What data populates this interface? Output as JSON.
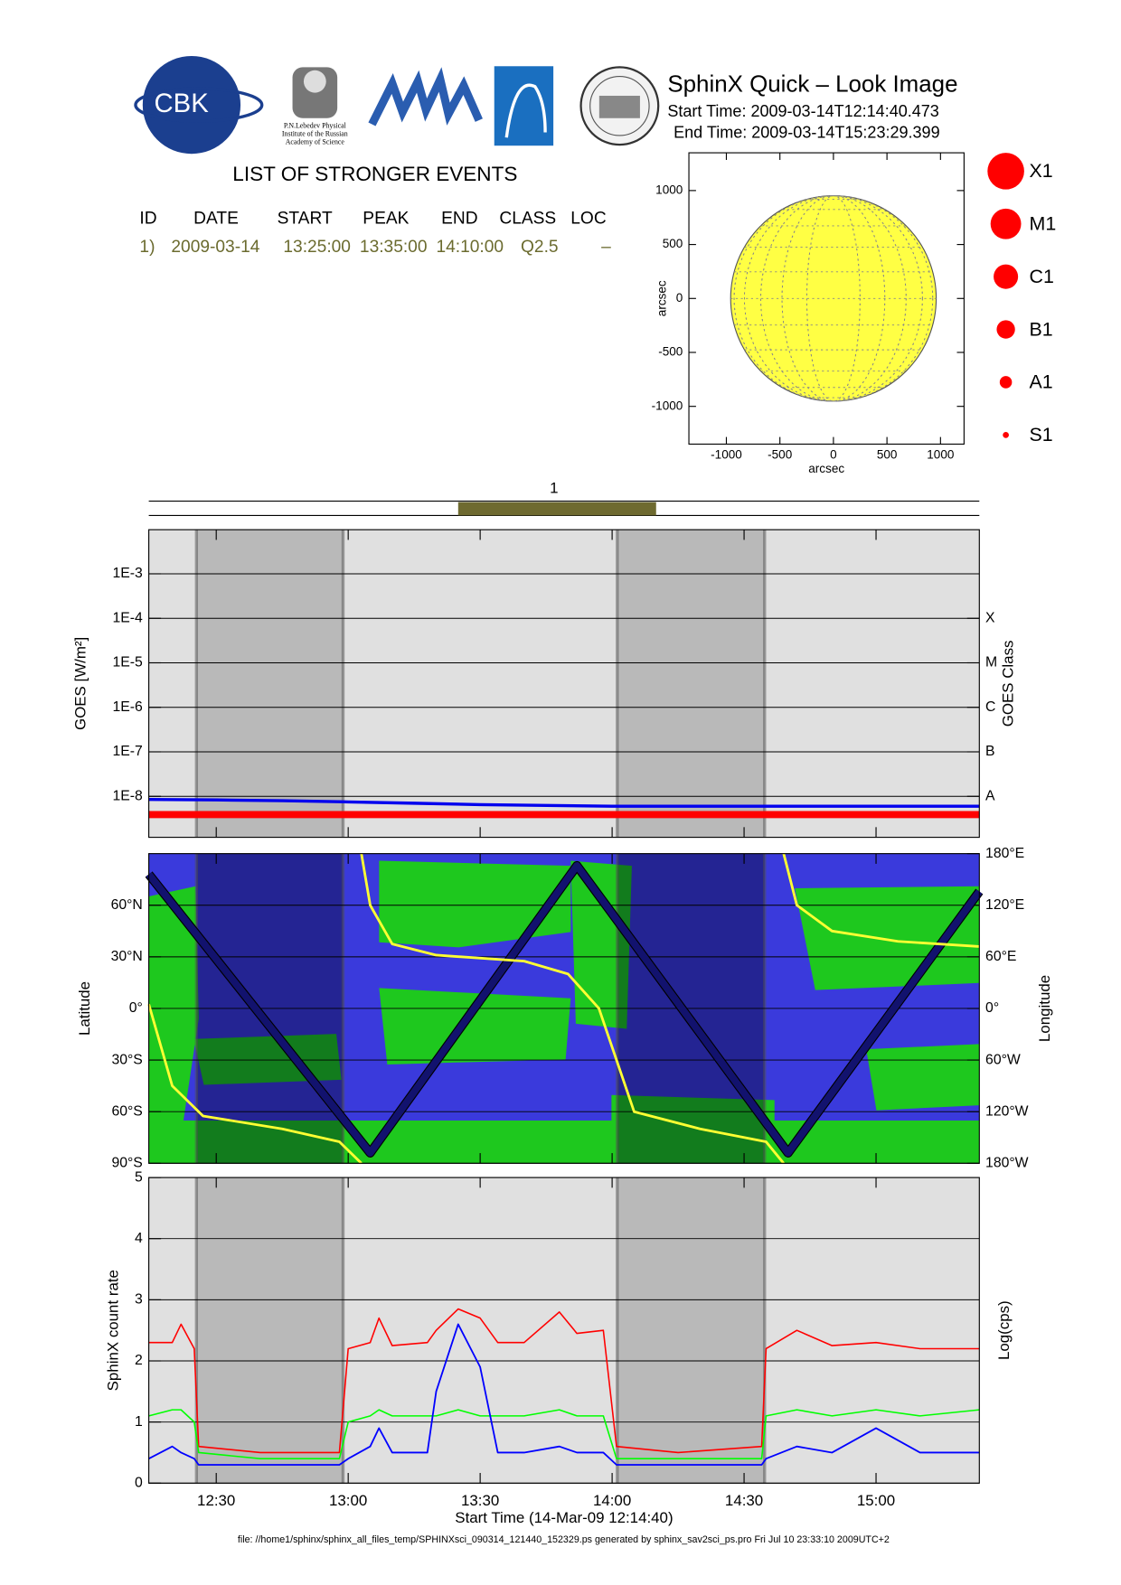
{
  "header": {
    "title": "SphinX Quick – Look Image",
    "start_time": "Start Time: 2009-03-14T12:14:40.473",
    "end_time": "End Time: 2009-03-14T15:23:29.399",
    "logo_text": "CBK",
    "institute_lines": [
      "P.N.Lebedev Physical",
      "Institute of the Russian",
      "Academy of Science"
    ]
  },
  "events": {
    "title": "LIST OF STRONGER EVENTS",
    "columns": [
      "ID",
      "DATE",
      "START",
      "PEAK",
      "END",
      "CLASS",
      "LOC"
    ],
    "rows": [
      [
        "1)",
        "2009-03-14",
        "13:25:00",
        "13:35:00",
        "14:10:00",
        "Q2.5",
        "–"
      ]
    ]
  },
  "class_legend": {
    "labels": [
      "X1",
      "M1",
      "C1",
      "B1",
      "A1",
      "S1"
    ],
    "color": "#ff0000"
  },
  "chart_data": [
    {
      "type": "disk",
      "xlabel": "arcsec",
      "ylabel": "arcsec",
      "xlim": [
        -1350,
        1220
      ],
      "ylim": [
        -1350,
        1350
      ],
      "xticks": [
        -1000,
        -500,
        0,
        500,
        1000
      ],
      "yticks": [
        -1000,
        -500,
        0,
        500,
        1000
      ],
      "radius": 960,
      "color": "#ffff44"
    },
    {
      "type": "span",
      "label": "1",
      "color": "#6e6a30",
      "xlim": [
        "12:14:40",
        "15:23:29"
      ]
    },
    {
      "type": "line",
      "ylabel": "GOES [W/m²]",
      "y2label": "GOES Class",
      "ylog": true,
      "background": "#e0e0e0",
      "shade_color": "#b9b9b9",
      "grid": true,
      "xlim": [
        "12:14:40",
        "15:23:29"
      ],
      "xticks": [
        "12:30",
        "13:00",
        "13:30",
        "14:00",
        "14:30",
        "15:00"
      ],
      "shaded": [
        [
          "12:25:30",
          "12:58:50"
        ],
        [
          "14:01:10",
          "14:34:40"
        ]
      ],
      "ylim": [
        1.2e-09,
        0.0098
      ],
      "yticks": [
        {
          "value": 1e-08,
          "label": "1E-8"
        },
        {
          "value": 1e-07,
          "label": "1E-7"
        },
        {
          "value": 1e-06,
          "label": "1E-6"
        },
        {
          "value": 1e-05,
          "label": "1E-5"
        },
        {
          "value": 0.0001,
          "label": "1E-4"
        },
        {
          "value": 0.001,
          "label": "1E-3"
        }
      ],
      "y2lim": [
        1.2e-09,
        0.0098
      ],
      "y2ticks": [
        {
          "value": 1e-08,
          "label": "A"
        },
        {
          "value": 1e-07,
          "label": "B"
        },
        {
          "value": 1e-06,
          "label": "C"
        },
        {
          "value": 1e-05,
          "label": "M"
        },
        {
          "value": 0.0001,
          "label": "X"
        }
      ],
      "x": [
        "12:14:40",
        "12:30",
        "12:45",
        "13:00",
        "13:15",
        "13:30",
        "14:00",
        "14:30",
        "15:00",
        "15:23:29"
      ],
      "series": [
        {
          "color": "#0000ee",
          "values": [
            8.5e-09,
            8.3e-09,
            8e-09,
            7.5e-09,
            7e-09,
            6.5e-09,
            6e-09,
            6e-09,
            6e-09,
            6e-09
          ]
        },
        {
          "color": "#ff0000",
          "values": [
            3.9e-09,
            3.9e-09,
            3.9e-09,
            3.9e-09,
            3.9e-09,
            3.9e-09,
            3.9e-09,
            3.9e-09,
            3.9e-09,
            3.9e-09
          ]
        }
      ]
    },
    {
      "type": "line",
      "ylabel": "Latitude",
      "y2label": "Longitude",
      "background": "#3a3adc",
      "shade_color": "rgba(0,0,30,0.38)",
      "grid": true,
      "xlim": [
        "12:14:40",
        "15:23:29"
      ],
      "xticks": [
        "12:30",
        "13:00",
        "13:30",
        "14:00",
        "14:30",
        "15:00"
      ],
      "shaded": [
        [
          "12:25:30",
          "12:58:50"
        ],
        [
          "14:01:10",
          "14:34:40"
        ]
      ],
      "ylim": [
        -90,
        90
      ],
      "yticks": [
        {
          "value": -90,
          "label": "90°S"
        },
        {
          "value": -60,
          "label": "60°S"
        },
        {
          "value": -30,
          "label": "30°S"
        },
        {
          "value": 0,
          "label": "0°"
        },
        {
          "value": 30,
          "label": "30°N"
        },
        {
          "value": 60,
          "label": "60°N"
        }
      ],
      "y2lim": [
        -180,
        180
      ],
      "y2ticks": [
        {
          "value": -180,
          "label": "180°W"
        },
        {
          "value": -120,
          "label": "120°W"
        },
        {
          "value": -60,
          "label": "60°W"
        },
        {
          "value": 0,
          "label": "0°"
        },
        {
          "value": 60,
          "label": "60°E"
        },
        {
          "value": 120,
          "label": "120°E"
        },
        {
          "value": 180,
          "label": "180°E"
        }
      ],
      "series": [
        {
          "color": "#12126e",
          "x": [
            "12:14:40",
            "13:05",
            "13:52",
            "14:40",
            "15:23:29"
          ],
          "values": [
            78,
            -84,
            83,
            -84,
            68
          ]
        },
        {
          "color": "#ffff33",
          "axis": "y2",
          "x": [
            "12:14:40",
            "12:20",
            "12:27",
            "12:45",
            "12:58",
            "13:03",
            "13:03",
            "13:03",
            "13:05",
            "13:10",
            "13:20",
            "13:40",
            "13:50",
            "13:57",
            "14:05",
            "14:20",
            "14:35",
            "14:39",
            "14:39",
            "14:39",
            "14:42",
            "14:50",
            "15:05",
            "15:23:29"
          ],
          "values": [
            5,
            -90,
            -125,
            -140,
            -155,
            -180,
            null,
            180,
            120,
            75,
            62,
            55,
            40,
            0,
            -120,
            -140,
            -155,
            -180,
            null,
            180,
            120,
            90,
            78,
            72
          ]
        }
      ]
    },
    {
      "type": "line",
      "ylabel": "SphinX count rate",
      "y2label": "Log(cps)",
      "xlabel": "Start Time (14-Mar-09 12:14:40)",
      "background": "#e0e0e0",
      "shade_color": "#b9b9b9",
      "grid": true,
      "xlim": [
        "12:14:40",
        "15:23:29"
      ],
      "xticks": [
        "12:30",
        "13:00",
        "13:30",
        "14:00",
        "14:30",
        "15:00"
      ],
      "shaded": [
        [
          "12:25:30",
          "12:58:50"
        ],
        [
          "14:01:10",
          "14:34:40"
        ]
      ],
      "ylim": [
        0,
        5
      ],
      "yticks": [
        0,
        1,
        2,
        3,
        4,
        5
      ],
      "x": [
        "12:14:40",
        "12:20",
        "12:22",
        "12:25",
        "12:26",
        "12:40",
        "12:58",
        "13:00",
        "13:05",
        "13:07",
        "13:10",
        "13:18",
        "13:20",
        "13:25",
        "13:30",
        "13:34",
        "13:40",
        "13:48",
        "13:52",
        "13:58",
        "14:01",
        "14:15",
        "14:34",
        "14:35",
        "14:42",
        "14:50",
        "15:00",
        "15:10",
        "15:23:29"
      ],
      "series": [
        {
          "color": "#ff0000",
          "values": [
            2.3,
            2.3,
            2.6,
            2.2,
            0.6,
            0.5,
            0.5,
            2.2,
            2.3,
            2.7,
            2.25,
            2.3,
            2.5,
            2.85,
            2.7,
            2.3,
            2.3,
            2.8,
            2.45,
            2.5,
            0.6,
            0.5,
            0.6,
            2.2,
            2.5,
            2.25,
            2.3,
            2.2,
            2.2
          ]
        },
        {
          "color": "#00ff00",
          "values": [
            1.1,
            1.2,
            1.2,
            1.0,
            0.5,
            0.4,
            0.4,
            1.0,
            1.1,
            1.2,
            1.1,
            1.1,
            1.1,
            1.2,
            1.1,
            1.1,
            1.1,
            1.2,
            1.1,
            1.1,
            0.4,
            0.4,
            0.4,
            1.1,
            1.2,
            1.1,
            1.2,
            1.1,
            1.2
          ]
        },
        {
          "color": "#0000ff",
          "values": [
            0.4,
            0.6,
            0.5,
            0.4,
            0.3,
            0.3,
            0.3,
            0.4,
            0.6,
            0.9,
            0.5,
            0.5,
            1.5,
            2.6,
            1.9,
            0.5,
            0.5,
            0.6,
            0.5,
            0.5,
            0.3,
            0.3,
            0.3,
            0.4,
            0.6,
            0.5,
            0.9,
            0.5,
            0.5
          ]
        }
      ]
    }
  ],
  "footer": "file: //home1/sphinx/sphinx_all_files_temp/SPHINXsci_090314_121440_152329.ps generated by sphinx_sav2sci_ps.pro Fri Jul 10 23:33:10 2009UTC+2"
}
